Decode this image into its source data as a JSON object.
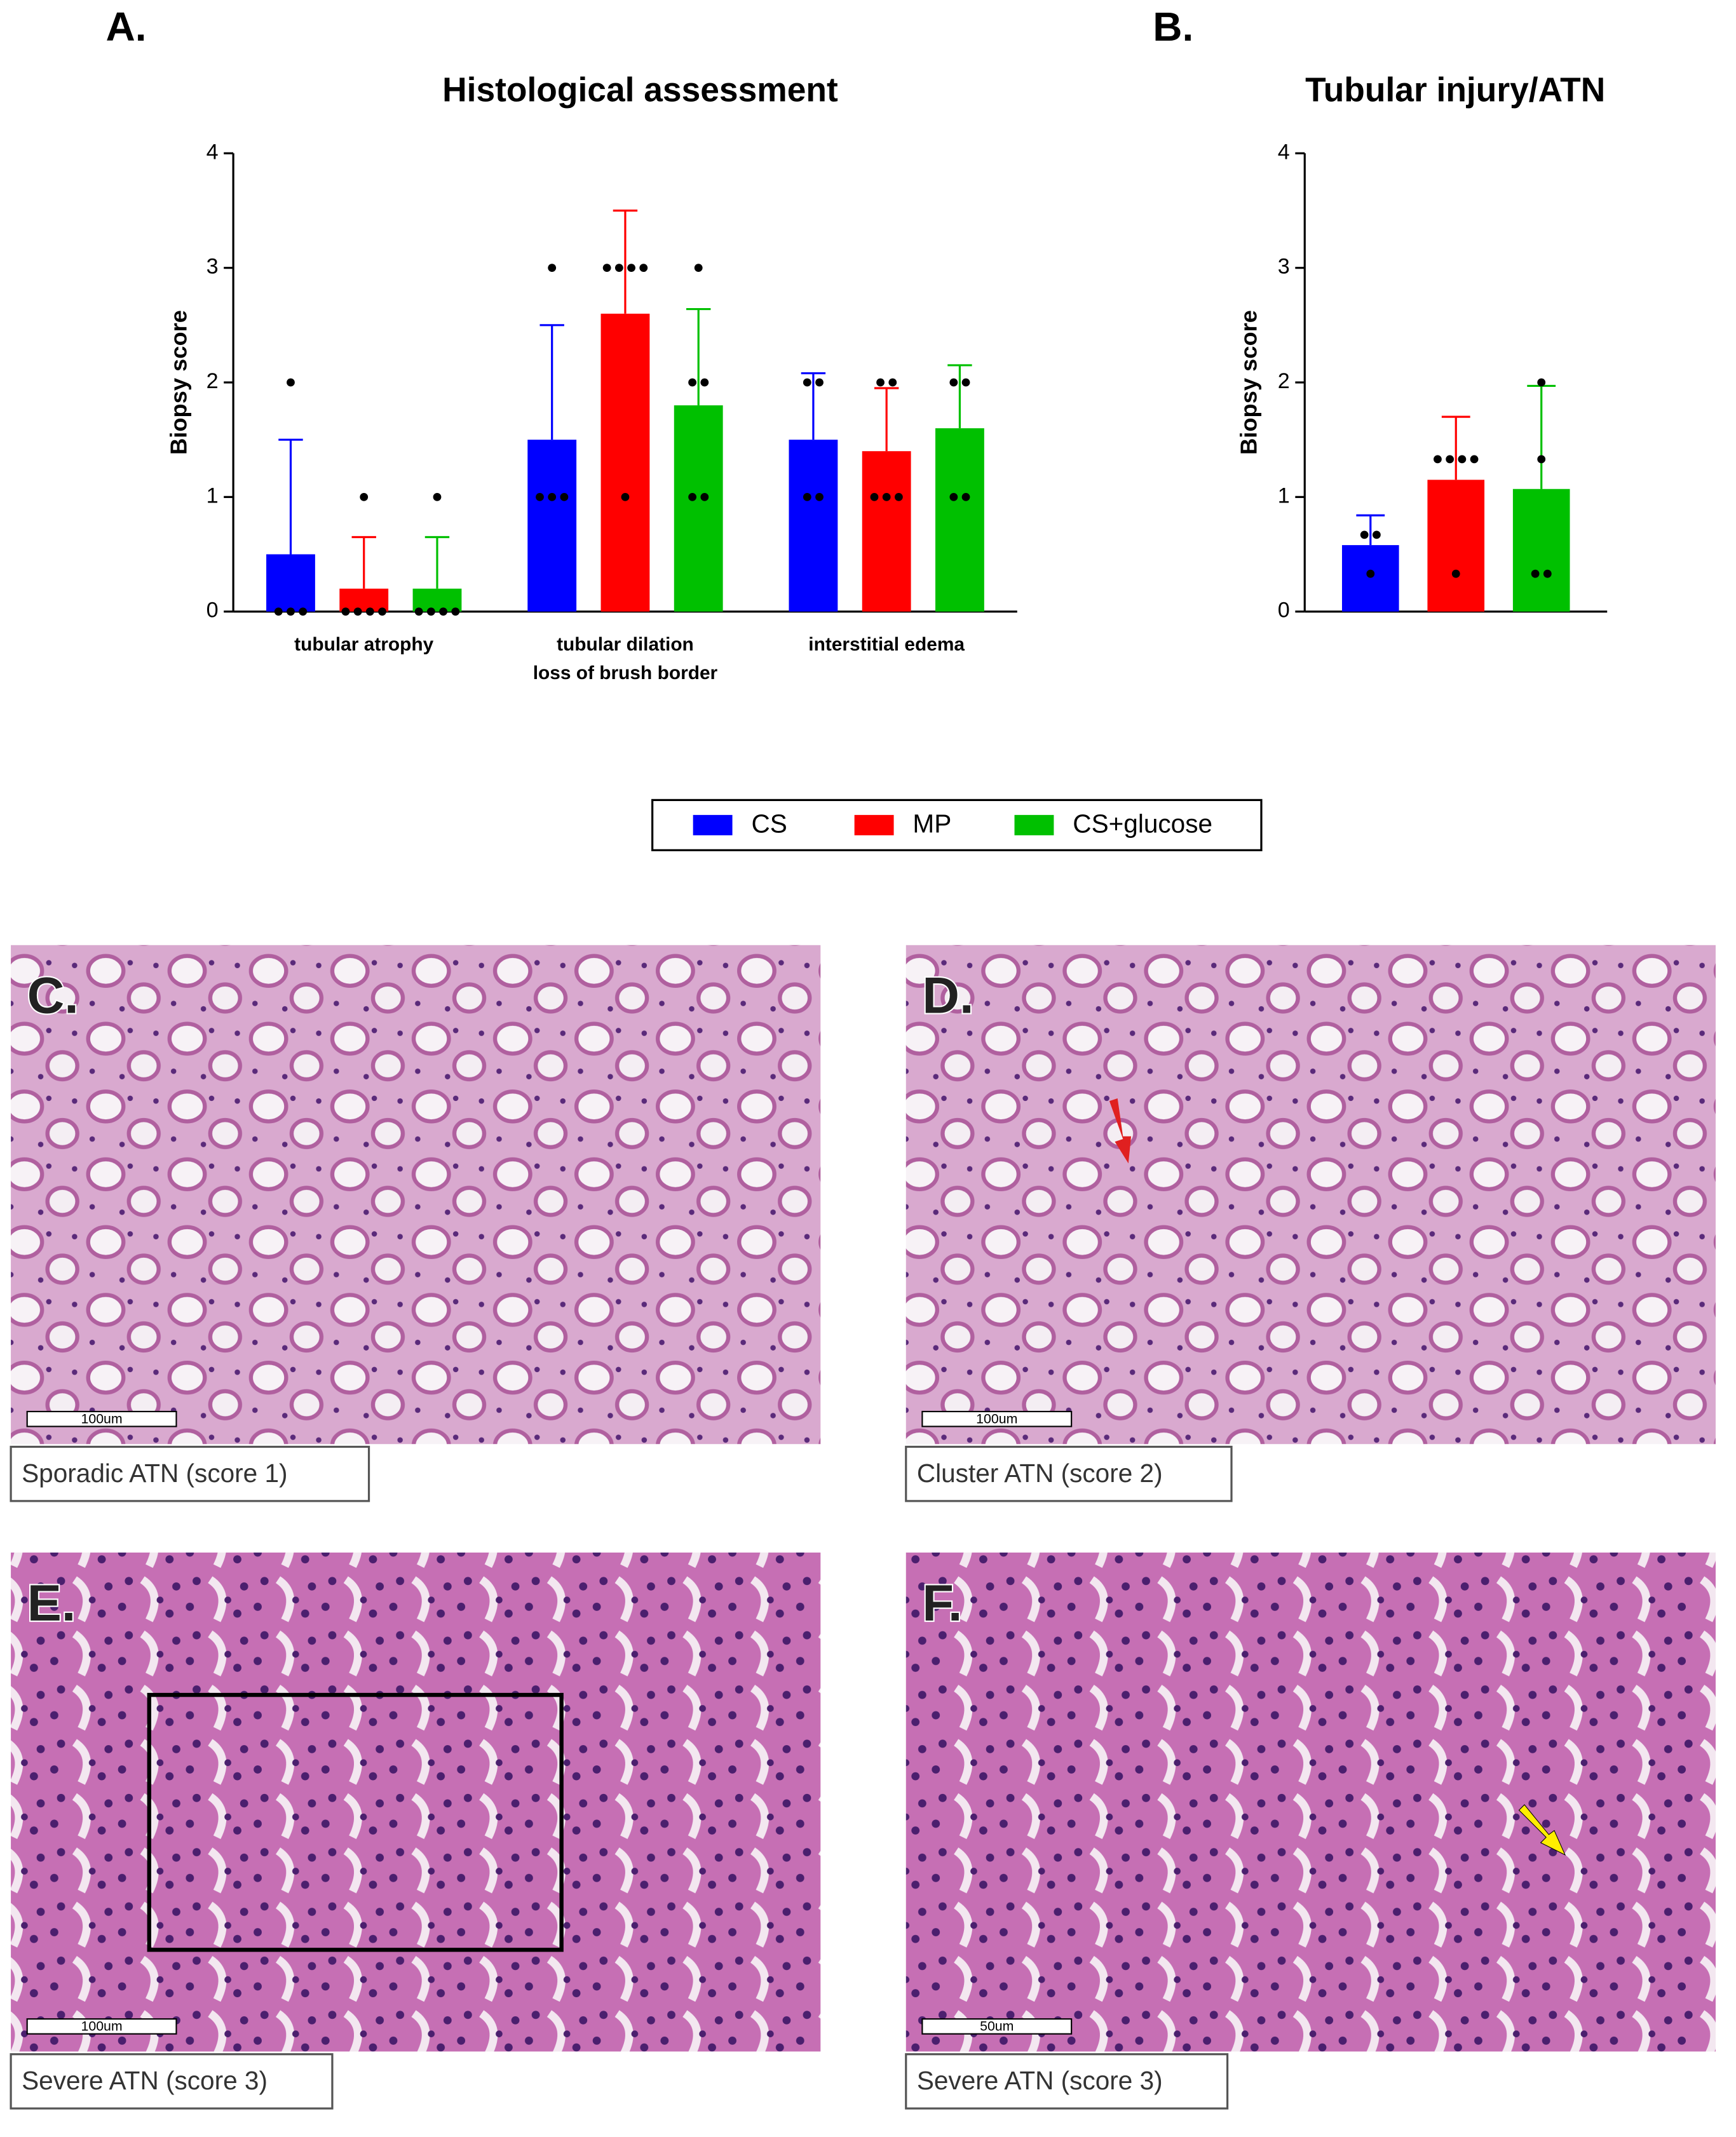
{
  "chart_data": [
    {
      "type": "bar",
      "panel": "A.",
      "title": "Histological assessment",
      "y_label": "Biopsy score",
      "categories": [
        "tubular atrophy",
        [
          "tubular dilation",
          "loss of brush border"
        ],
        "interstitial edema"
      ],
      "ylim": [
        0,
        4
      ],
      "yticks": [
        0,
        1,
        2,
        3,
        4
      ],
      "series": [
        {
          "name": "CS",
          "color": "#0000ff",
          "values": [
            0.5,
            1.5,
            1.5
          ],
          "errors": [
            1.0,
            1.0,
            0.58
          ],
          "points": [
            [
              2,
              0,
              0,
              0
            ],
            [
              3,
              1,
              1,
              1
            ],
            [
              2,
              2,
              1,
              1
            ]
          ]
        },
        {
          "name": "MP",
          "color": "#ff0000",
          "values": [
            0.2,
            2.6,
            1.4
          ],
          "errors": [
            0.45,
            0.9,
            0.55
          ],
          "points": [
            [
              1,
              0,
              0,
              0,
              0
            ],
            [
              3,
              3,
              3,
              3,
              1
            ],
            [
              2,
              2,
              1,
              1,
              1
            ]
          ]
        },
        {
          "name": "CS+glucose",
          "color": "#00c000",
          "values": [
            0.2,
            1.8,
            1.6
          ],
          "errors": [
            0.45,
            0.84,
            0.55
          ],
          "points": [
            [
              1,
              0,
              0,
              0,
              0
            ],
            [
              3,
              2,
              2,
              1,
              1
            ],
            [
              2,
              2,
              1,
              1
            ]
          ]
        }
      ]
    },
    {
      "type": "bar",
      "panel": "B.",
      "title": "Tubular injury/ATN",
      "y_label": "Biopsy score",
      "ylim": [
        0,
        4
      ],
      "yticks": [
        0,
        1,
        2,
        3,
        4
      ],
      "series": [
        {
          "color": "#0000ff",
          "values": [
            0.58
          ],
          "errors": [
            0.26
          ],
          "points": [
            [
              0.67,
              0.67,
              0.33
            ]
          ]
        },
        {
          "color": "#ff0000",
          "values": [
            1.15
          ],
          "errors": [
            0.55
          ],
          "points": [
            [
              1.33,
              1.33,
              1.33,
              1.33,
              0.33
            ]
          ]
        },
        {
          "color": "#00c000",
          "values": [
            1.07
          ],
          "errors": [
            0.9
          ],
          "points": [
            [
              2,
              1.33,
              0.33,
              0.33
            ]
          ]
        }
      ]
    }
  ],
  "panels": [
    {
      "label": "C.",
      "caption": "Sporadic ATN (score 1)",
      "scale_bar": "100um"
    },
    {
      "label": "D.",
      "caption": "Cluster ATN (score 2)",
      "scale_bar": "100um"
    },
    {
      "label": "E.",
      "caption": "Severe ATN (score 3)",
      "scale_bar": "100um"
    },
    {
      "label": "F.",
      "caption": "Severe ATN (score 3)",
      "scale_bar": "50um"
    }
  ]
}
